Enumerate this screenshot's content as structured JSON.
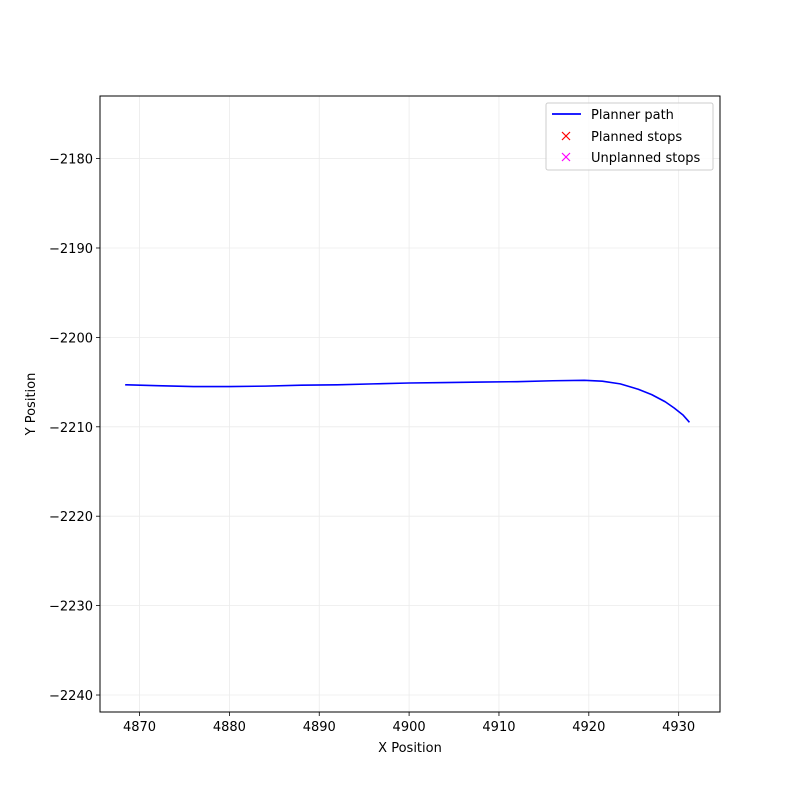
{
  "chart_data": {
    "type": "line",
    "title": "",
    "xlabel": "X Position",
    "ylabel": "Y Position",
    "xlim": [
      4865.6,
      4934.6
    ],
    "ylim": [
      -2241.9,
      -2173.0
    ],
    "xticks": [
      4870,
      4880,
      4890,
      4900,
      4910,
      4920,
      4930
    ],
    "yticks": [
      -2180,
      -2190,
      -2200,
      -2210,
      -2220,
      -2230,
      -2240
    ],
    "xtick_labels": [
      "4870",
      "4880",
      "4890",
      "4900",
      "4910",
      "4920",
      "4930"
    ],
    "ytick_labels": [
      "−2180",
      "−2190",
      "−2200",
      "−2210",
      "−2220",
      "−2230",
      "−2240"
    ],
    "grid": true,
    "legend_position": "top-right",
    "series": [
      {
        "name": "Planner path",
        "kind": "line",
        "color": "#0000ff",
        "x": [
          4868.4,
          4872,
          4876,
          4880,
          4884,
          4888,
          4892,
          4896,
          4900,
          4904,
          4908,
          4912,
          4916,
          4919.5,
          4921.5,
          4923.5,
          4925.5,
          4927,
          4928.5,
          4929.5,
          4930.5,
          4931.2
        ],
        "y": [
          -2205.3,
          -2205.4,
          -2205.5,
          -2205.5,
          -2205.45,
          -2205.35,
          -2205.3,
          -2205.2,
          -2205.1,
          -2205.05,
          -2205.0,
          -2204.95,
          -2204.85,
          -2204.8,
          -2204.9,
          -2205.2,
          -2205.8,
          -2206.4,
          -2207.2,
          -2207.9,
          -2208.7,
          -2209.5
        ]
      },
      {
        "name": "Planned stops",
        "kind": "marker",
        "marker": "x",
        "color": "#ff0000",
        "x": [],
        "y": []
      },
      {
        "name": "Unplanned stops",
        "kind": "marker",
        "marker": "x",
        "color": "#ff00ff",
        "x": [],
        "y": []
      }
    ]
  }
}
